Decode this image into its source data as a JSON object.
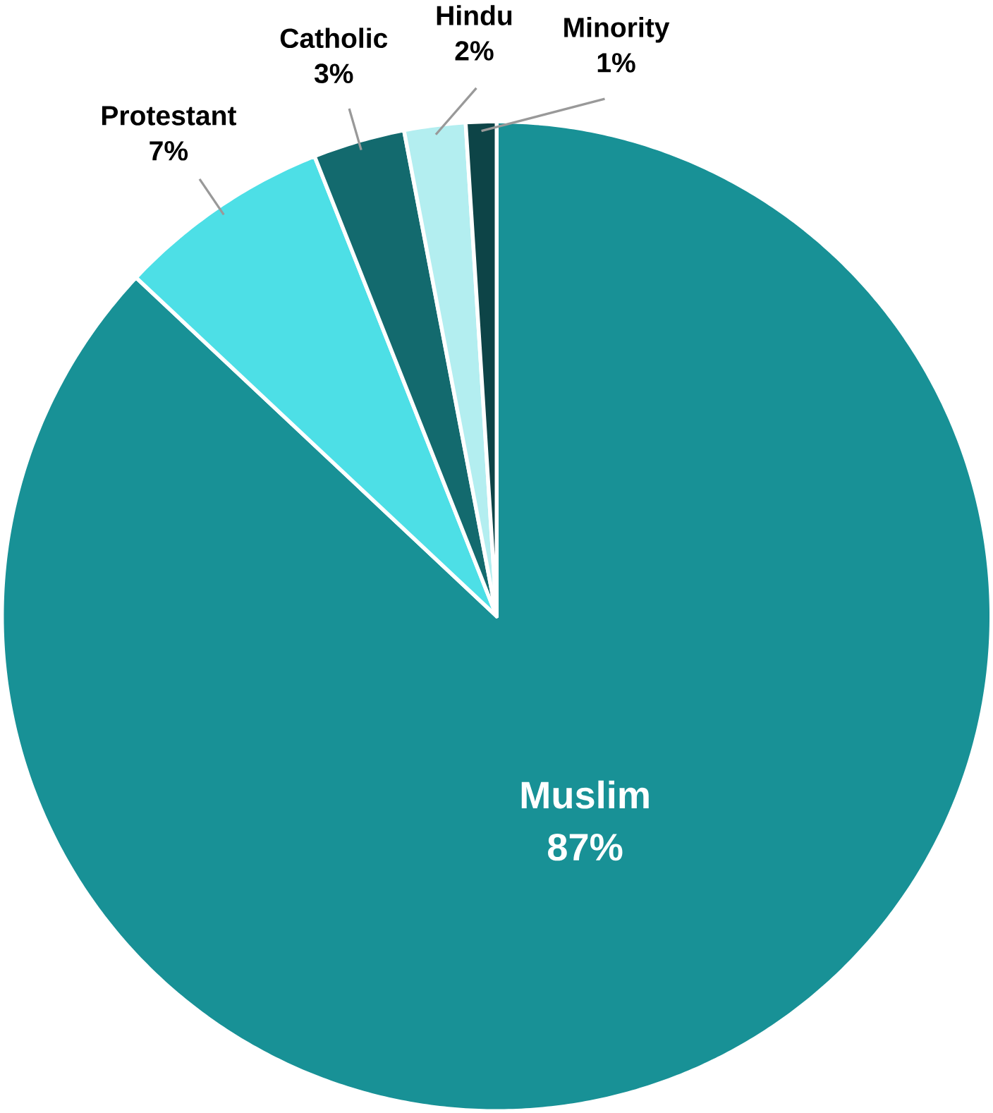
{
  "chart_data": {
    "type": "pie",
    "categories": [
      "Muslim",
      "Protestant",
      "Catholic",
      "Hindu",
      "Minority"
    ],
    "values": [
      87,
      7,
      3,
      2,
      1
    ],
    "value_labels": [
      "87%",
      "7%",
      "3%",
      "2%",
      "1%"
    ],
    "colors": [
      "#189196",
      "#4ddfe6",
      "#136a6e",
      "#b3eef0",
      "#0d4447"
    ]
  }
}
